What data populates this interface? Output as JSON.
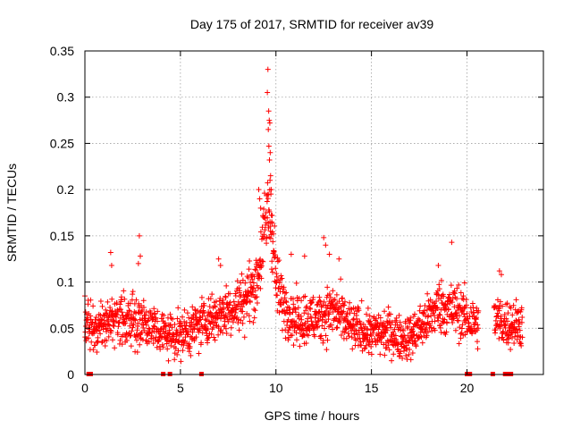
{
  "chart_data": {
    "type": "scatter",
    "title": "Day 175 of 2017, SRMTID for receiver av39",
    "xlabel": "GPS time / hours",
    "ylabel": "SRMTID / TECUs",
    "xlim": [
      0,
      24
    ],
    "ylim": [
      0,
      0.35
    ],
    "x_ticks": [
      0,
      5,
      10,
      15,
      20
    ],
    "x_tick_labels": [
      "0",
      "5",
      "10",
      "15",
      "20"
    ],
    "y_ticks": [
      0,
      0.05,
      0.1,
      0.15,
      0.2,
      0.25,
      0.3,
      0.35
    ],
    "y_tick_labels": [
      "0",
      "0.05",
      "0.1",
      "0.15",
      "0.2",
      "0.25",
      "0.3",
      "0.35"
    ],
    "grid": true,
    "marker": "+",
    "marker_color": "#ff0000",
    "profile": {
      "x": [
        0,
        0.5,
        1,
        1.5,
        2,
        3,
        4,
        5,
        6,
        7,
        8,
        8.5,
        9,
        9.3,
        9.6,
        9.8,
        10,
        10.3,
        11,
        12,
        13,
        14,
        15,
        16,
        16.5,
        17,
        17.5,
        18,
        18.5,
        19,
        19.5,
        20,
        20.5,
        21,
        21.5,
        22,
        22.5,
        22.9
      ],
      "y": [
        0.06,
        0.045,
        0.055,
        0.06,
        0.06,
        0.058,
        0.045,
        0.042,
        0.055,
        0.065,
        0.075,
        0.085,
        0.1,
        0.14,
        0.18,
        0.16,
        0.1,
        0.08,
        0.06,
        0.06,
        0.07,
        0.05,
        0.045,
        0.045,
        0.04,
        0.04,
        0.05,
        0.06,
        0.075,
        0.07,
        0.07,
        0.06,
        0.055,
        0.055,
        0.06,
        0.055,
        0.055,
        0.055
      ],
      "noise_sd": 0.014
    },
    "data_gaps_hours": [
      [
        20.6,
        21.4
      ],
      [
        22.9,
        24
      ]
    ],
    "peak_points": [
      {
        "x": 9.58,
        "y": 0.33
      },
      {
        "x": 9.55,
        "y": 0.305
      },
      {
        "x": 9.62,
        "y": 0.285
      },
      {
        "x": 9.65,
        "y": 0.275
      },
      {
        "x": 9.68,
        "y": 0.272
      },
      {
        "x": 9.6,
        "y": 0.265
      },
      {
        "x": 9.63,
        "y": 0.247
      },
      {
        "x": 9.7,
        "y": 0.24
      },
      {
        "x": 9.66,
        "y": 0.232
      },
      {
        "x": 9.72,
        "y": 0.215
      },
      {
        "x": 9.69,
        "y": 0.21
      },
      {
        "x": 9.75,
        "y": 0.2
      },
      {
        "x": 9.6,
        "y": 0.195
      },
      {
        "x": 9.1,
        "y": 0.2
      },
      {
        "x": 9.15,
        "y": 0.19
      },
      {
        "x": 9.2,
        "y": 0.18
      },
      {
        "x": 9.8,
        "y": 0.172
      },
      {
        "x": 9.78,
        "y": 0.165
      },
      {
        "x": 2.85,
        "y": 0.15
      },
      {
        "x": 12.5,
        "y": 0.148
      },
      {
        "x": 19.2,
        "y": 0.143
      },
      {
        "x": 2.8,
        "y": 0.12
      },
      {
        "x": 2.9,
        "y": 0.128
      },
      {
        "x": 1.35,
        "y": 0.132
      },
      {
        "x": 1.4,
        "y": 0.118
      },
      {
        "x": 7.0,
        "y": 0.125
      },
      {
        "x": 7.1,
        "y": 0.118
      },
      {
        "x": 12.6,
        "y": 0.14
      },
      {
        "x": 12.8,
        "y": 0.13
      },
      {
        "x": 11.5,
        "y": 0.128
      },
      {
        "x": 10.8,
        "y": 0.13
      },
      {
        "x": 13.3,
        "y": 0.125
      },
      {
        "x": 18.5,
        "y": 0.118
      },
      {
        "x": 21.7,
        "y": 0.112
      },
      {
        "x": 21.8,
        "y": 0.108
      }
    ],
    "zero_markers_hours": [
      0.2,
      0.3,
      4.1,
      4.45,
      6.1,
      20.0,
      20.05,
      20.15,
      21.35,
      22.0,
      22.1,
      22.3
    ]
  }
}
